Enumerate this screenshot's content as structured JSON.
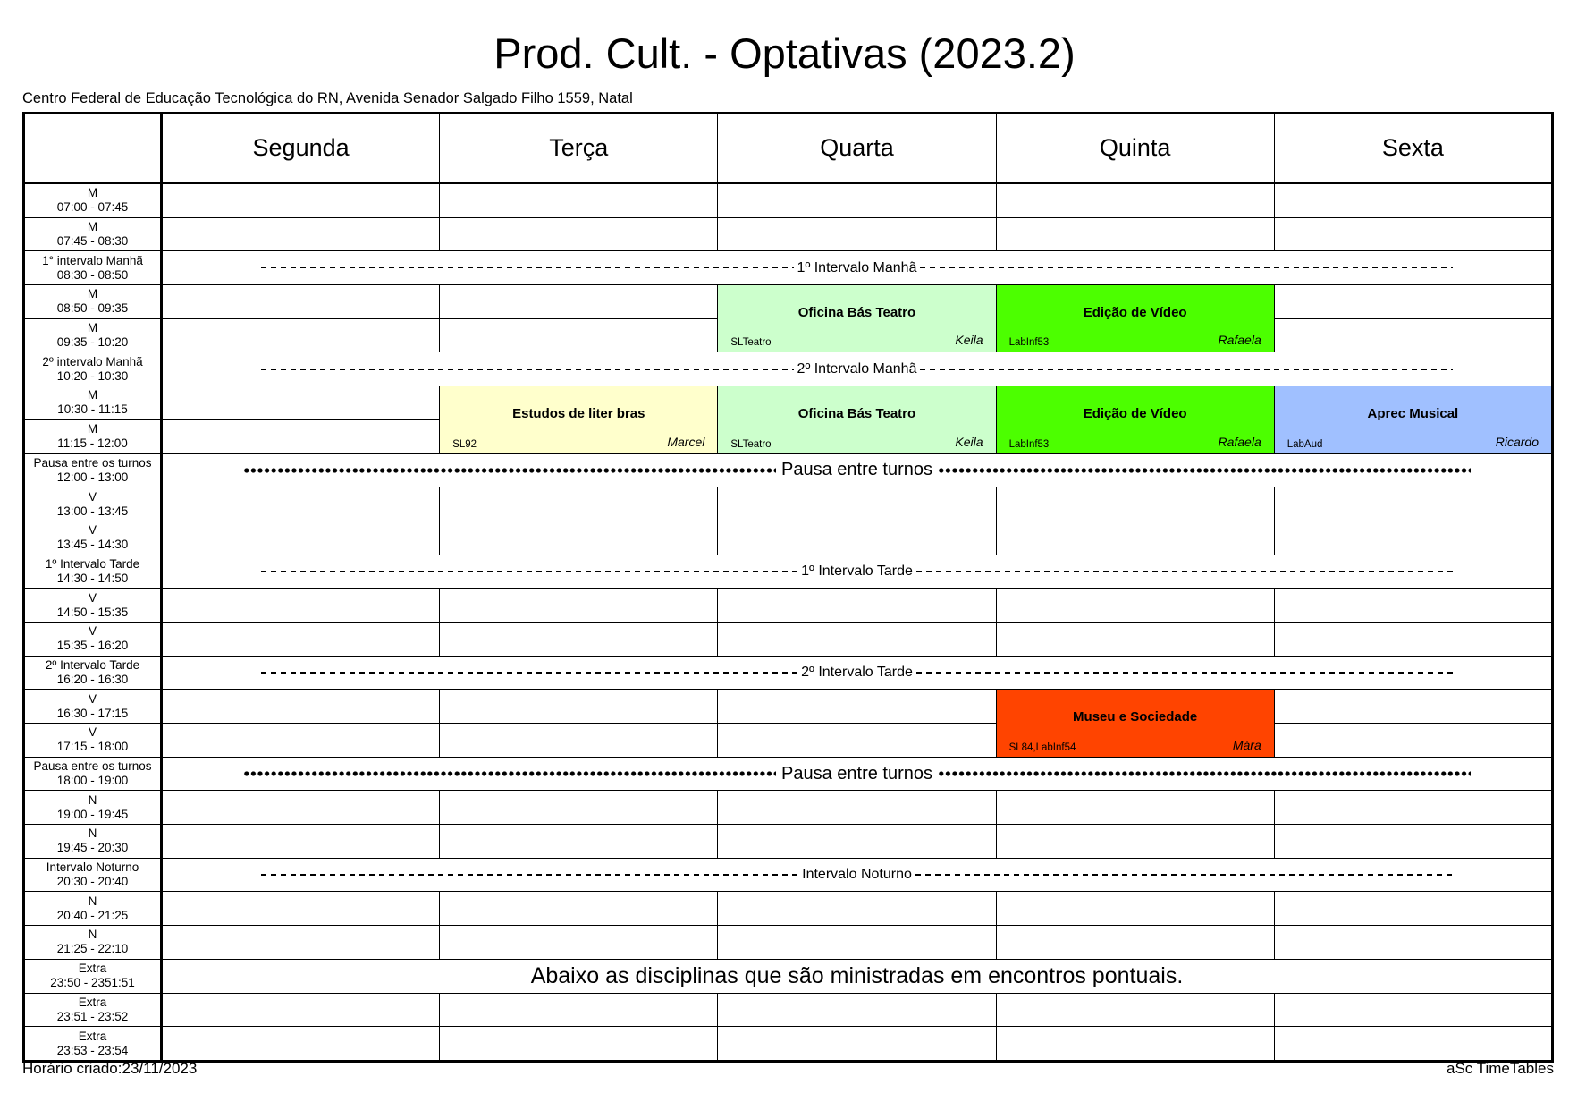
{
  "title": "Prod. Cult. - Optativas (2023.2)",
  "subtitle": "Centro Federal de Educação Tecnológica do RN, Avenida Senador Salgado Filho 1559, Natal",
  "footer": {
    "created": "Horário criado:23/11/2023",
    "brand": "aSc TimeTables"
  },
  "days": [
    "Segunda",
    "Terça",
    "Quarta",
    "Quinta",
    "Sexta"
  ],
  "rows": [
    {
      "name": "M",
      "time": "07:00 - 07:45"
    },
    {
      "name": "M",
      "time": "07:45 - 08:30"
    },
    {
      "name": "1° intervalo Manhã",
      "time": "08:30 - 08:50",
      "band": "1º Intervalo Manhã",
      "style": "dash"
    },
    {
      "name": "M",
      "time": "08:50 - 09:35"
    },
    {
      "name": "M",
      "time": "09:35 - 10:20"
    },
    {
      "name": "2º intervalo Manhã",
      "time": "10:20 - 10:30",
      "band": "2º Intervalo Manhã",
      "style": "dash"
    },
    {
      "name": "M",
      "time": "10:30 - 11:15"
    },
    {
      "name": "M",
      "time": "11:15 - 12:00"
    },
    {
      "name": "Pausa entre os turnos",
      "time": "12:00 - 13:00",
      "band": "Pausa entre turnos",
      "style": "dots"
    },
    {
      "name": "V",
      "time": "13:00 - 13:45"
    },
    {
      "name": "V",
      "time": "13:45 - 14:30"
    },
    {
      "name": "1º Intervalo Tarde",
      "time": "14:30 - 14:50",
      "band": "1º Intervalo Tarde",
      "style": "dash"
    },
    {
      "name": "V",
      "time": "14:50 - 15:35"
    },
    {
      "name": "V",
      "time": "15:35 - 16:20"
    },
    {
      "name": "2º Intervalo Tarde",
      "time": "16:20 - 16:30",
      "band": "2º Intervalo Tarde",
      "style": "dash"
    },
    {
      "name": "V",
      "time": "16:30 - 17:15"
    },
    {
      "name": "V",
      "time": "17:15 - 18:00"
    },
    {
      "name": "Pausa entre os turnos",
      "time": "18:00 - 19:00",
      "band": "Pausa entre turnos",
      "style": "dots"
    },
    {
      "name": "N",
      "time": "19:00 - 19:45"
    },
    {
      "name": "N",
      "time": "19:45 - 20:30"
    },
    {
      "name": "Intervalo Noturno",
      "time": "20:30 - 20:40",
      "band": "Intervalo Noturno",
      "style": "dash"
    },
    {
      "name": "N",
      "time": "20:40 - 21:25"
    },
    {
      "name": "N",
      "time": "21:25 - 22:10"
    },
    {
      "name": "Extra",
      "time": "23:50 - 2351:51",
      "band": "Abaixo as disciplinas que são ministradas em encontros pontuais.",
      "style": "plain"
    },
    {
      "name": "Extra",
      "time": "23:51 - 23:52"
    },
    {
      "name": "Extra",
      "time": "23:53 - 23:54"
    }
  ],
  "lessons": [
    {
      "row": 3,
      "day": 2,
      "span": 2,
      "subject": "Oficina Bás Teatro",
      "room": "SLTeatro",
      "teacher": "Keila",
      "color": "#ccffcc"
    },
    {
      "row": 3,
      "day": 3,
      "span": 2,
      "subject": "Edição de Vídeo",
      "room": "LabInf53",
      "teacher": "Rafaela",
      "color": "#4cff00"
    },
    {
      "row": 6,
      "day": 1,
      "span": 2,
      "subject": "Estudos de liter bras",
      "room": "SL92",
      "teacher": "Marcel",
      "color": "#ffffcc"
    },
    {
      "row": 6,
      "day": 2,
      "span": 2,
      "subject": "Oficina Bás Teatro",
      "room": "SLTeatro",
      "teacher": "Keila",
      "color": "#ccffcc"
    },
    {
      "row": 6,
      "day": 3,
      "span": 2,
      "subject": "Edição de Vídeo",
      "room": "LabInf53",
      "teacher": "Rafaela",
      "color": "#4cff00"
    },
    {
      "row": 6,
      "day": 4,
      "span": 2,
      "subject": "Aprec Musical",
      "room": "LabAud",
      "teacher": "Ricardo",
      "color": "#a0c0ff"
    },
    {
      "row": 15,
      "day": 3,
      "span": 2,
      "subject": "Museu e Sociedade",
      "room": "SL84,LabInf54",
      "teacher": "Mára",
      "color": "#ff4400"
    }
  ]
}
